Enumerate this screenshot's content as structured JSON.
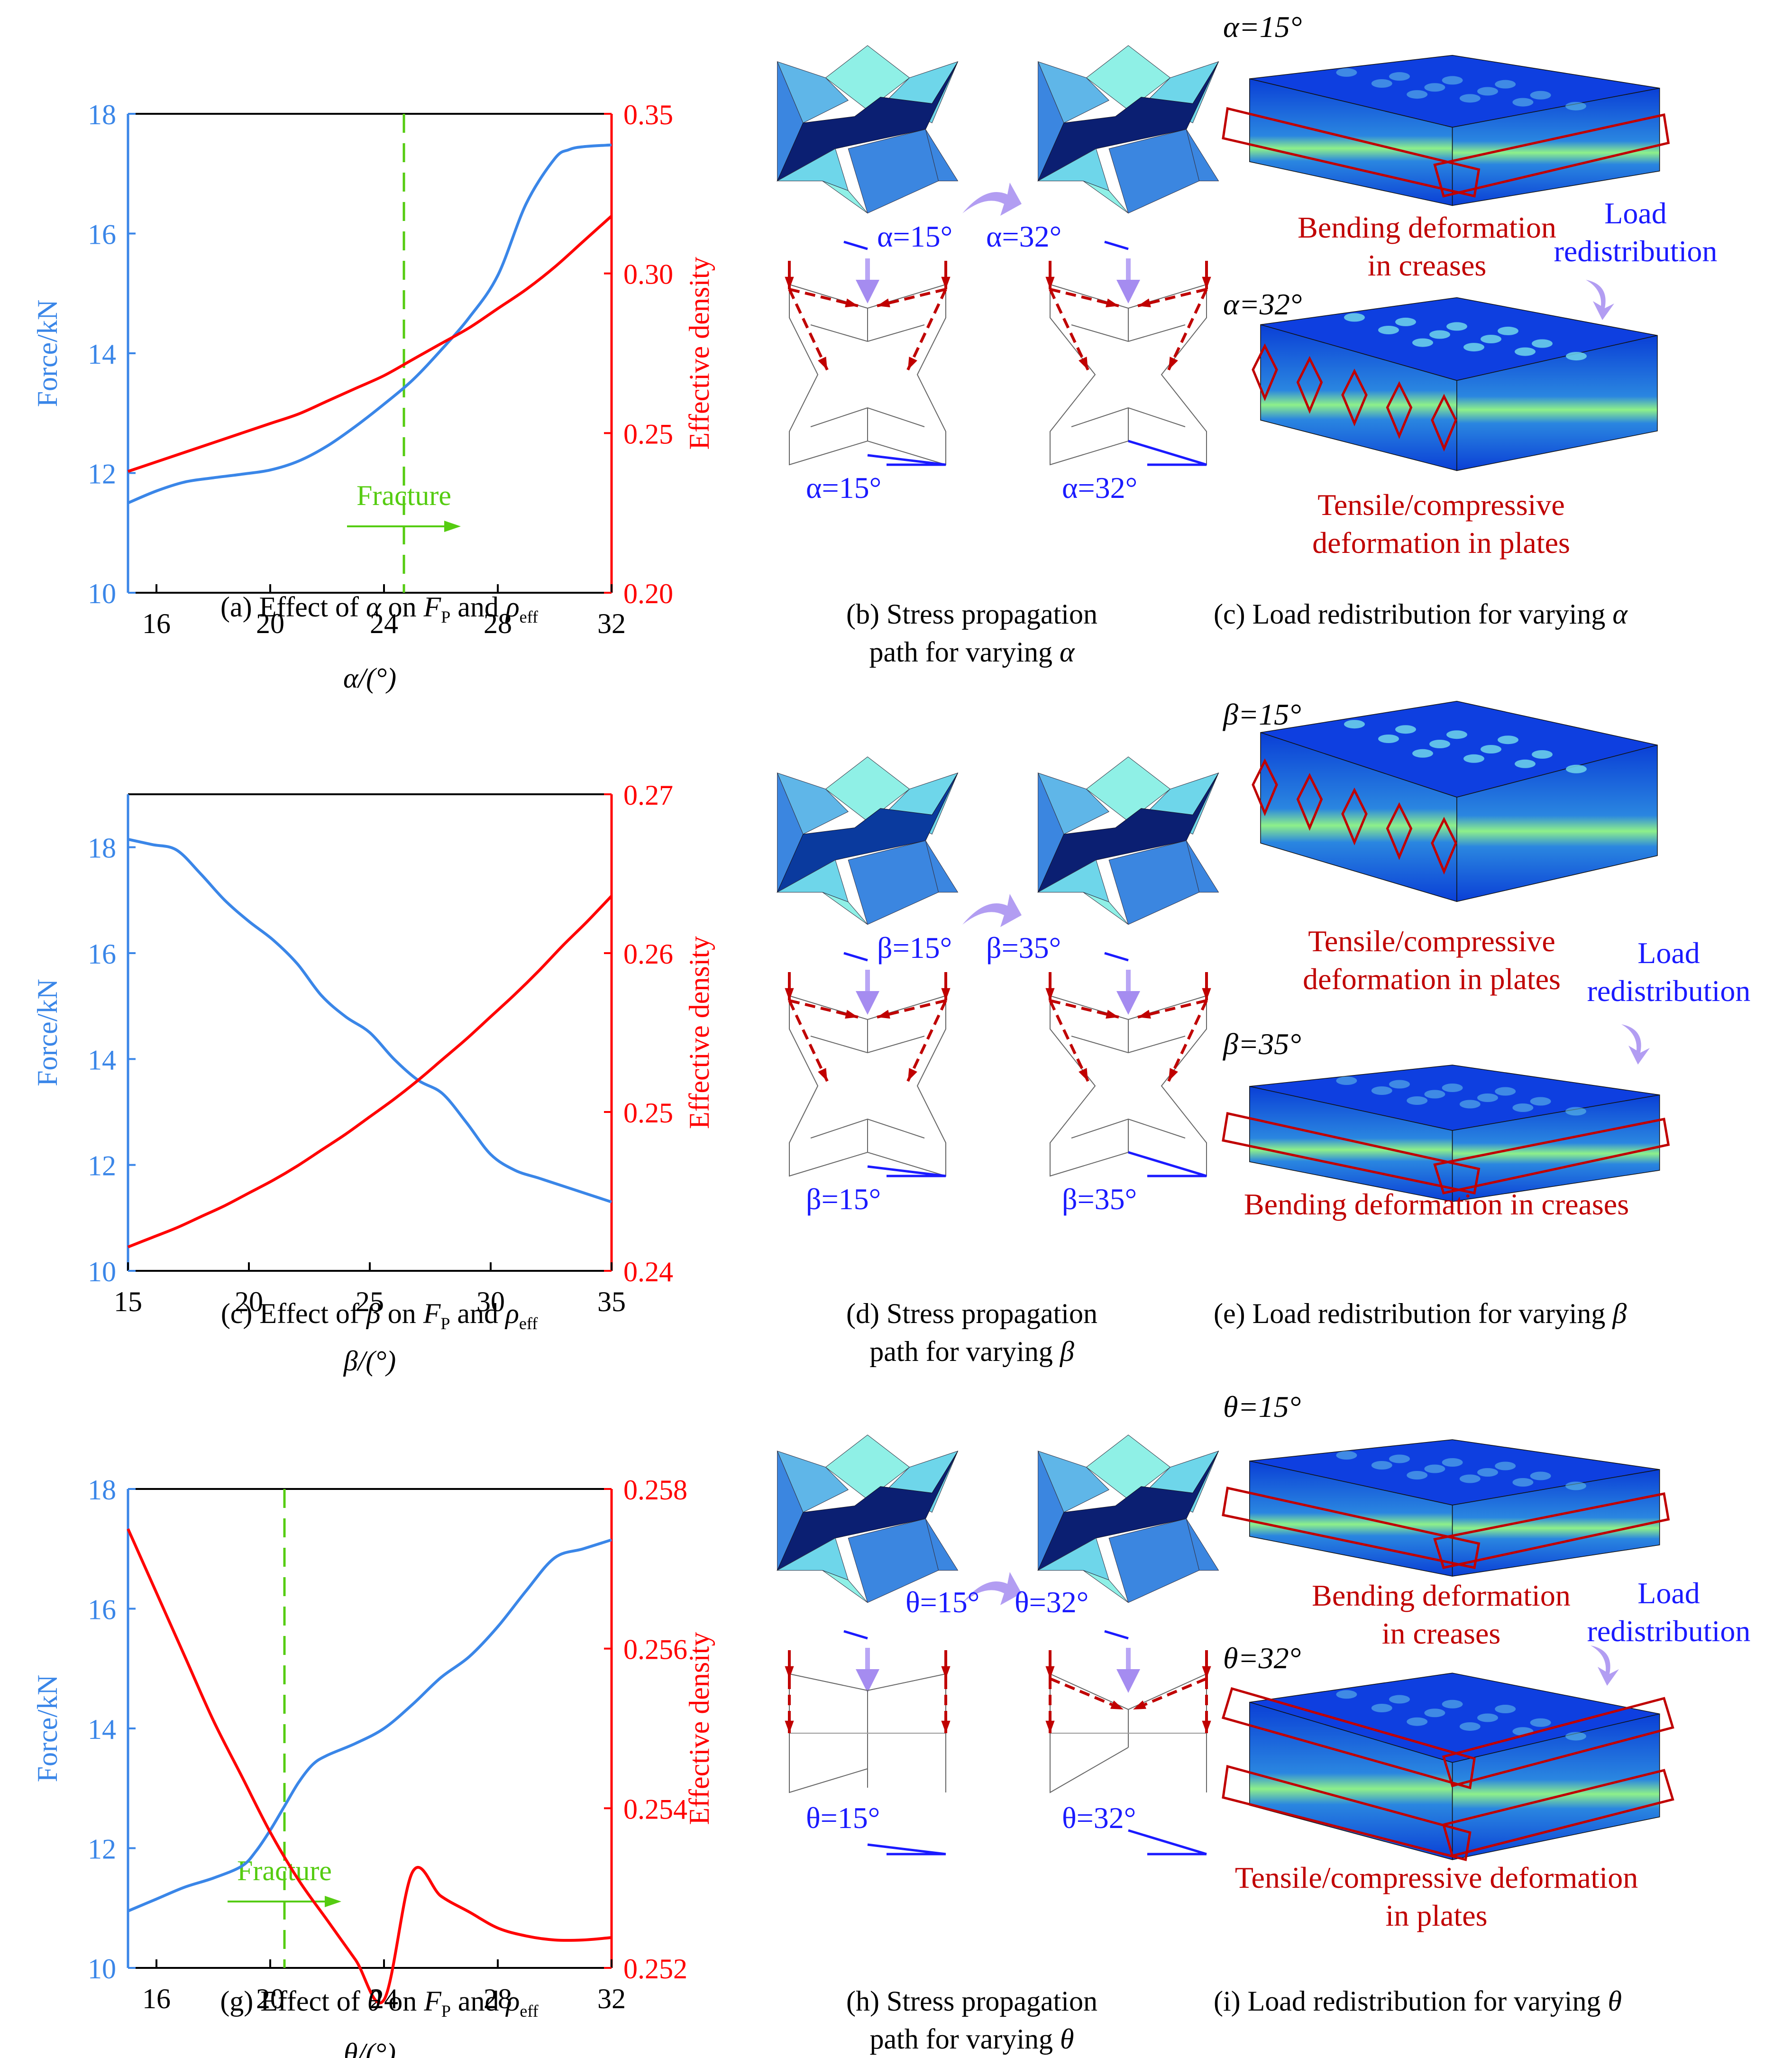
{
  "colors": {
    "force": "#3a86e8",
    "density": "#ff0000",
    "fracture": "#55cc11",
    "angle": "#1a1aff",
    "stress_path": "#c00000",
    "note_red": "#c00000",
    "note_blue": "#1a1aff"
  },
  "chart_data": [
    {
      "id": "a",
      "type": "line",
      "title": "(a) Effect of α on F_P and ρ_eff",
      "xlabel": "α/(°)",
      "ylabel_left": "Force/kN",
      "ylabel_right": "Effective density",
      "xlim": [
        15,
        32
      ],
      "ylim_left": [
        10,
        18
      ],
      "ylim_right": [
        0.2,
        0.35
      ],
      "xticks": [
        "16",
        "20",
        "24",
        "28",
        "32"
      ],
      "xtick_values": [
        16,
        20,
        24,
        28,
        32
      ],
      "yticks_left": [
        "10",
        "12",
        "14",
        "16",
        "18"
      ],
      "ytick_values_left": [
        10,
        12,
        14,
        16,
        18
      ],
      "yticks_right": [
        "0.20",
        "0.25",
        "0.30",
        "0.35"
      ],
      "ytick_values_right": [
        0.2,
        0.25,
        0.3,
        0.35
      ],
      "grid": false,
      "fracture": {
        "x": 24.7,
        "label": "Fracture",
        "direction": "right"
      },
      "series": [
        {
          "name": "Force",
          "axis": "left",
          "x": [
            15,
            16,
            17,
            18,
            19,
            20,
            21,
            22,
            23,
            24,
            25,
            26,
            27,
            28,
            29,
            30,
            30.5,
            31,
            32
          ],
          "values": [
            11.5,
            11.7,
            11.85,
            11.92,
            11.98,
            12.05,
            12.2,
            12.45,
            12.78,
            13.15,
            13.55,
            14.05,
            14.6,
            15.3,
            16.5,
            17.25,
            17.4,
            17.45,
            17.48
          ]
        },
        {
          "name": "Effective density",
          "axis": "right",
          "x": [
            15,
            16,
            17,
            18,
            19,
            20,
            21,
            22,
            23,
            24,
            25,
            26,
            27,
            28,
            29,
            30,
            31,
            32
          ],
          "values": [
            0.238,
            0.241,
            0.244,
            0.247,
            0.25,
            0.253,
            0.256,
            0.26,
            0.264,
            0.268,
            0.273,
            0.278,
            0.283,
            0.289,
            0.295,
            0.302,
            0.31,
            0.318
          ]
        }
      ]
    },
    {
      "id": "c",
      "type": "line",
      "title": "(c) Effect of β on F_P and ρ_eff",
      "xlabel": "β/(°)",
      "ylabel_left": "Force/kN",
      "ylabel_right": "Effective density",
      "xlim": [
        15,
        35
      ],
      "ylim_left": [
        10,
        19
      ],
      "ylim_right": [
        0.24,
        0.27
      ],
      "xticks": [
        "15",
        "20",
        "25",
        "30",
        "35"
      ],
      "xtick_values": [
        15,
        20,
        25,
        30,
        35
      ],
      "yticks_left": [
        "10",
        "12",
        "14",
        "16",
        "18"
      ],
      "ytick_values_left": [
        10,
        12,
        14,
        16,
        18
      ],
      "yticks_right": [
        "0.24",
        "0.25",
        "0.26",
        "0.27"
      ],
      "ytick_values_right": [
        0.24,
        0.25,
        0.26,
        0.27
      ],
      "grid": false,
      "series": [
        {
          "name": "Force",
          "axis": "left",
          "x": [
            15,
            16,
            17,
            18,
            19,
            20,
            21,
            22,
            23,
            24,
            25,
            26,
            27,
            28,
            29,
            30,
            31,
            32,
            33,
            34,
            35
          ],
          "values": [
            18.15,
            18.05,
            17.95,
            17.5,
            17.0,
            16.6,
            16.25,
            15.8,
            15.2,
            14.8,
            14.5,
            14.0,
            13.6,
            13.35,
            12.8,
            12.2,
            11.9,
            11.75,
            11.6,
            11.45,
            11.3
          ]
        },
        {
          "name": "Effective density",
          "axis": "right",
          "x": [
            15,
            16,
            17,
            18,
            19,
            20,
            21,
            22,
            23,
            24,
            25,
            26,
            27,
            28,
            29,
            30,
            31,
            32,
            33,
            34,
            35
          ],
          "values": [
            0.2415,
            0.2421,
            0.2427,
            0.2434,
            0.2441,
            0.2449,
            0.2457,
            0.2466,
            0.2476,
            0.2486,
            0.2497,
            0.2508,
            0.252,
            0.2533,
            0.2546,
            0.256,
            0.2574,
            0.2589,
            0.2605,
            0.262,
            0.2636
          ]
        }
      ]
    },
    {
      "id": "g",
      "type": "line",
      "title": "(g) Effect of θ on F_P and ρ_eff",
      "xlabel": "θ/(°)",
      "ylabel_left": "Force/kN",
      "ylabel_right": "Effective density",
      "xlim": [
        15,
        32
      ],
      "ylim_left": [
        10,
        18
      ],
      "ylim_right": [
        0.252,
        0.258
      ],
      "xticks": [
        "16",
        "20",
        "24",
        "28",
        "32"
      ],
      "xtick_values": [
        16,
        20,
        24,
        28,
        32
      ],
      "yticks_left": [
        "10",
        "12",
        "14",
        "16",
        "18"
      ],
      "ytick_values_left": [
        10,
        12,
        14,
        16,
        18
      ],
      "yticks_right": [
        "0.252",
        "0.254",
        "0.256",
        "0.258"
      ],
      "ytick_values_right": [
        0.252,
        0.254,
        0.256,
        0.258
      ],
      "grid": false,
      "fracture": {
        "x": 20.5,
        "label": "Fracture",
        "direction": "right"
      },
      "series": [
        {
          "name": "Force",
          "axis": "left",
          "x": [
            15,
            16,
            17,
            18,
            19,
            19.5,
            20,
            20.5,
            21,
            21.5,
            22,
            23,
            24,
            25,
            26,
            27,
            28,
            29,
            30,
            31,
            32
          ],
          "values": [
            10.95,
            11.15,
            11.35,
            11.5,
            11.7,
            11.95,
            12.3,
            12.7,
            13.1,
            13.4,
            13.55,
            13.75,
            14.0,
            14.4,
            14.85,
            15.2,
            15.7,
            16.3,
            16.85,
            17.0,
            17.15
          ]
        },
        {
          "name": "Effective density",
          "axis": "right",
          "x": [
            15,
            16,
            17,
            18,
            19,
            20,
            21,
            22,
            23,
            24,
            25,
            26,
            27,
            28,
            29,
            30,
            31,
            32
          ],
          "values": [
            0.2575,
            0.2567,
            0.2559,
            0.2551,
            0.2544,
            0.2537,
            0.2531,
            0.2526,
            0.2521,
            0.2516,
            0.2532,
            0.2529,
            0.2527,
            0.2525,
            0.2524,
            0.25235,
            0.25235,
            0.25238
          ]
        }
      ]
    }
  ],
  "captions": {
    "a": {
      "prefix": "(a) Effect of ",
      "var": "α",
      "mid": " on ",
      "F": "F",
      "F_sub": "P",
      "and": " and ",
      "rho": "ρ",
      "rho_sub": "eff"
    },
    "b": {
      "line1": "(b) Stress propagation",
      "line2_prefix": "path for varying ",
      "var": "α"
    },
    "c_right": {
      "prefix": "(c) Load redistribution for varying ",
      "var": "α"
    },
    "c": {
      "prefix": "(c) Effect of ",
      "var": "β",
      "mid": " on ",
      "F": "F",
      "F_sub": "P",
      "and": " and ",
      "rho": "ρ",
      "rho_sub": "eff"
    },
    "d": {
      "line1": "(d) Stress propagation",
      "line2_prefix": "path for varying ",
      "var": "β"
    },
    "e": {
      "prefix": "(e) Load redistribution for varying ",
      "var": "β"
    },
    "g": {
      "prefix": "(g) Effect of ",
      "var": "θ",
      "mid": " on ",
      "F": "F",
      "F_sub": "P",
      "and": " and ",
      "rho": "ρ",
      "rho_sub": "eff"
    },
    "h": {
      "line1": "(h) Stress propagation",
      "line2_prefix": "path for varying ",
      "var": "θ"
    },
    "i": {
      "prefix": "(i) Load redistribution for varying ",
      "var": "θ"
    }
  },
  "diagrams": {
    "b": {
      "left_angle": "α=15°",
      "right_angle": "α=32°",
      "left_bottom": "α=15°",
      "right_bottom": "α=32°"
    },
    "d": {
      "left_angle": "β=15°",
      "right_angle": "β=35°",
      "left_bottom": "β=15°",
      "right_bottom": "β=35°"
    },
    "h": {
      "left_angle": "θ=15°",
      "right_angle": "θ=32°",
      "left_bottom": "θ=15°",
      "right_bottom": "θ=32°"
    }
  },
  "fe_panels": {
    "c": {
      "top_label": "α=15°",
      "bottom_label": "α=32°",
      "top_note": [
        "Bending deformation",
        "in creases"
      ],
      "bottom_note": [
        "Tensile/compressive",
        "deformation in plates"
      ],
      "redistribution": [
        "Load",
        "redistribution"
      ]
    },
    "e": {
      "top_label": "β=15°",
      "bottom_label": "β=35°",
      "top_note": [
        "Tensile/compressive",
        "deformation in plates"
      ],
      "bottom_note": [
        "Bending deformation in creases"
      ],
      "redistribution": [
        "Load",
        "redistribution"
      ]
    },
    "i": {
      "top_label": "θ=15°",
      "bottom_label": "θ=32°",
      "top_note": [
        "Bending deformation",
        "in creases"
      ],
      "bottom_note": [
        "Tensile/compressive deformation",
        "in plates"
      ],
      "redistribution": [
        "Load",
        "redistribution"
      ]
    }
  }
}
